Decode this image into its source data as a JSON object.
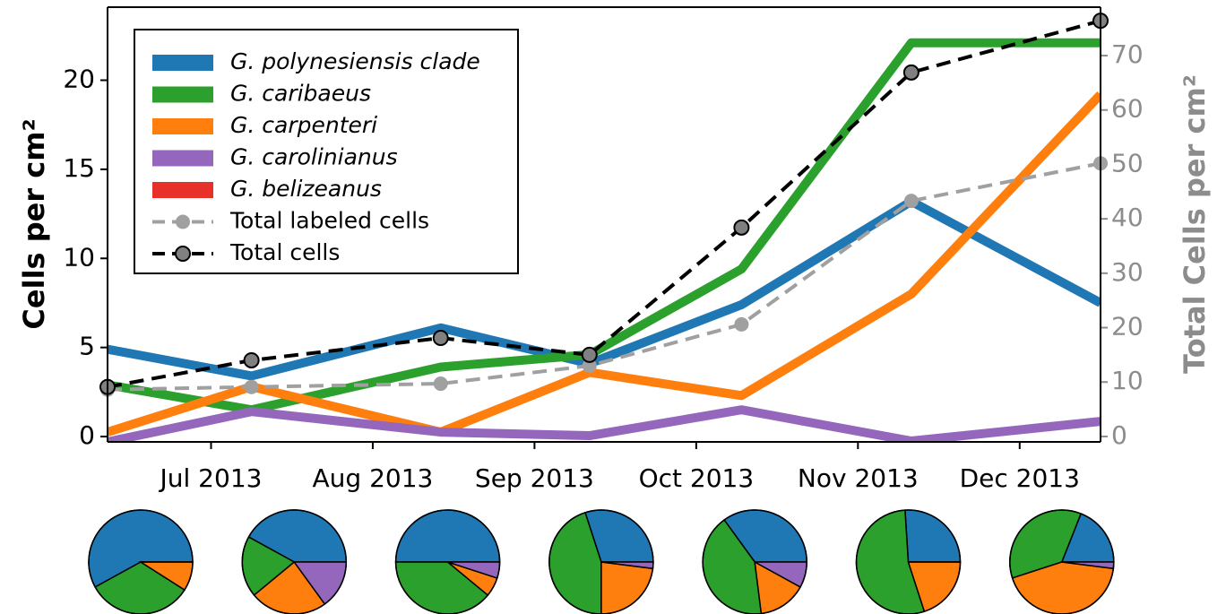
{
  "chart_data": [
    {
      "type": "line",
      "ylabel": "Cells per cm²",
      "y2label": "Total Cells per cm²",
      "x": [
        6.36,
        7.25,
        8.42,
        9.34,
        10.28,
        11.33,
        12.5
      ],
      "xlim": [
        6.36,
        12.5
      ],
      "xticks": [
        {
          "value": 7,
          "label": "Jul 2013"
        },
        {
          "value": 8,
          "label": "Aug 2013"
        },
        {
          "value": 9,
          "label": "Sep 2013"
        },
        {
          "value": 10,
          "label": "Oct 2013"
        },
        {
          "value": 11,
          "label": "Nov 2013"
        },
        {
          "value": 12,
          "label": "Dec 2013"
        }
      ],
      "ylim": [
        -0.3,
        24.1
      ],
      "yticks": [
        0,
        5,
        10,
        15,
        20
      ],
      "y2lim": [
        -1,
        78.9
      ],
      "y2ticks": [
        0,
        10,
        20,
        30,
        40,
        50,
        60,
        70
      ],
      "series": [
        {
          "name": "G. polynesiensis clade",
          "color": "#1f77b4",
          "values": [
            4.9,
            3.4,
            6.1,
            4.1,
            7.4,
            13.2,
            7.5
          ]
        },
        {
          "name": "G. caribaeus",
          "color": "#2ca02c",
          "values": [
            2.9,
            1.5,
            3.9,
            4.6,
            9.4,
            22.1,
            22.1
          ]
        },
        {
          "name": "G. carpenteri",
          "color": "#ff7f0e",
          "values": [
            0.25,
            2.8,
            0.25,
            3.6,
            2.3,
            8.0,
            19.2
          ]
        },
        {
          "name": "G. carolinianus",
          "color": "#9467bd",
          "values": [
            -0.3,
            1.4,
            0.25,
            0.05,
            1.5,
            -0.25,
            0.85
          ]
        },
        {
          "name": "G. belizeanus",
          "color": "#e8302a",
          "values": [
            null,
            null,
            null,
            null,
            null,
            null,
            null
          ]
        },
        {
          "name": "Total labeled cells",
          "color": "#a0a0a0",
          "dashed": true,
          "marker_color": "#a0a0a0",
          "axis": "y2",
          "values": [
            8.6,
            9.1,
            9.7,
            13.0,
            20.6,
            43.3,
            50.2
          ]
        },
        {
          "name": "Total cells",
          "color": "#000000",
          "dashed": true,
          "marker_color": "#808080",
          "axis": "y2",
          "values": [
            9.1,
            14.0,
            18.1,
            15.0,
            38.4,
            66.9,
            76.4
          ]
        }
      ]
    },
    {
      "type": "pie",
      "colors": [
        "#1f77b4",
        "#2ca02c",
        "#ff7f0e",
        "#9467bd"
      ],
      "values": [
        58,
        33,
        9,
        0
      ]
    },
    {
      "type": "pie",
      "colors": [
        "#1f77b4",
        "#2ca02c",
        "#ff7f0e",
        "#9467bd"
      ],
      "values": [
        42,
        19,
        24,
        15
      ]
    },
    {
      "type": "pie",
      "colors": [
        "#1f77b4",
        "#2ca02c",
        "#ff7f0e",
        "#9467bd"
      ],
      "values": [
        50,
        39,
        6,
        5
      ]
    },
    {
      "type": "pie",
      "colors": [
        "#1f77b4",
        "#2ca02c",
        "#ff7f0e",
        "#9467bd"
      ],
      "values": [
        30,
        45,
        23,
        2
      ]
    },
    {
      "type": "pie",
      "colors": [
        "#1f77b4",
        "#2ca02c",
        "#ff7f0e",
        "#9467bd"
      ],
      "values": [
        35,
        42,
        15,
        8
      ]
    },
    {
      "type": "pie",
      "colors": [
        "#1f77b4",
        "#2ca02c",
        "#ff7f0e",
        "#9467bd"
      ],
      "values": [
        26,
        54,
        20,
        0
      ]
    },
    {
      "type": "pie",
      "colors": [
        "#1f77b4",
        "#2ca02c",
        "#ff7f0e",
        "#9467bd"
      ],
      "values": [
        19,
        36,
        43,
        2
      ]
    }
  ]
}
